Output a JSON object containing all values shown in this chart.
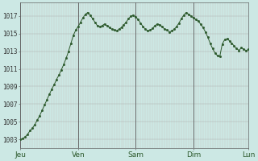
{
  "background_color": "#cce8e4",
  "plot_bg_color": "#cce8e4",
  "line_color": "#2d5a2d",
  "marker_color": "#2d5a2d",
  "day_line_color": "#6a6a6a",
  "yticks": [
    1003,
    1005,
    1007,
    1009,
    1011,
    1013,
    1015,
    1017
  ],
  "ylim": [
    1002.0,
    1018.5
  ],
  "xlim": [
    0,
    95
  ],
  "day_labels": [
    "Jeu",
    "Ven",
    "Sam",
    "Dim",
    "Lun"
  ],
  "day_positions": [
    0,
    24,
    48,
    72,
    95
  ],
  "day_tick_positions": [
    0,
    24,
    48,
    72,
    95
  ],
  "ylabel_fontsize": 5.5,
  "xlabel_fontsize": 6.5,
  "values": [
    1003.0,
    1003.1,
    1003.3,
    1003.6,
    1004.0,
    1004.3,
    1004.7,
    1005.2,
    1005.7,
    1006.3,
    1006.9,
    1007.5,
    1008.1,
    1008.7,
    1009.2,
    1009.8,
    1010.3,
    1010.9,
    1011.5,
    1012.2,
    1013.0,
    1013.9,
    1014.8,
    1015.4,
    1015.8,
    1016.3,
    1016.8,
    1017.2,
    1017.4,
    1017.1,
    1016.7,
    1016.3,
    1015.9,
    1015.8,
    1015.9,
    1016.1,
    1015.9,
    1015.7,
    1015.5,
    1015.4,
    1015.3,
    1015.5,
    1015.7,
    1016.0,
    1016.3,
    1016.7,
    1017.0,
    1017.1,
    1016.9,
    1016.6,
    1016.2,
    1015.8,
    1015.5,
    1015.3,
    1015.4,
    1015.6,
    1015.9,
    1016.1,
    1016.0,
    1015.8,
    1015.5,
    1015.4,
    1015.2,
    1015.3,
    1015.5,
    1015.8,
    1016.2,
    1016.7,
    1017.1,
    1017.4,
    1017.2,
    1017.0,
    1016.8,
    1016.6,
    1016.4,
    1016.1,
    1015.7,
    1015.2,
    1014.6,
    1013.9,
    1013.3,
    1012.8,
    1012.5,
    1012.4,
    1013.8,
    1014.3,
    1014.4,
    1014.2,
    1013.9,
    1013.6,
    1013.3,
    1013.1,
    1013.4,
    1013.2,
    1013.1,
    1013.2
  ]
}
